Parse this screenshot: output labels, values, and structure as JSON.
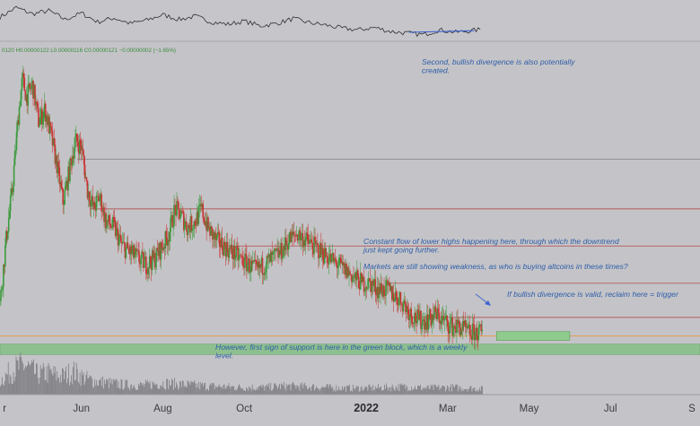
{
  "chart_data": {
    "type": "candlestick",
    "ohlc_header": "0120  H0.00000122  L0.00000116  C0.00000121  −0.00000002 (−1.65%)",
    "x_ticks": [
      {
        "label": "r",
        "pos": 0.07
      },
      {
        "label": "Jun",
        "pos": 2.0
      },
      {
        "label": "Aug",
        "pos": 4.0
      },
      {
        "label": "Oct",
        "pos": 6.0
      },
      {
        "label": "2022",
        "pos": 9.0,
        "bold": true
      },
      {
        "label": "Mar",
        "pos": 11.0
      },
      {
        "label": "May",
        "pos": 13.0
      },
      {
        "label": "Jul",
        "pos": 15.0
      },
      {
        "label": "S",
        "pos": 17.0
      }
    ],
    "x_axis_pos_range": [
      0,
      17.2
    ],
    "annotations": [
      {
        "id": "note-divergence",
        "text_lines": [
          "Second, bullish divergence is also potentially",
          "created."
        ]
      },
      {
        "id": "note-lower-highs",
        "text_lines": [
          "Constant flow of lower highs happening here, through which the downtrend",
          "just kept going further."
        ]
      },
      {
        "id": "note-weakness",
        "text_lines": [
          "Markets are still showing weakness, as who is buying altcoins in these times?"
        ]
      },
      {
        "id": "note-reclaim",
        "text_lines": [
          "If bullish divergence is valid, reclaim here = trigger"
        ]
      },
      {
        "id": "note-support",
        "text_lines": [
          "However, first sign of support is here in the green block, which is a weekly",
          "level."
        ]
      }
    ],
    "price_path": [
      [
        0.0,
        9e-07
      ],
      [
        0.05,
        1.2e-06
      ],
      [
        0.15,
        1.9e-06
      ],
      [
        0.3,
        2.7e-06
      ],
      [
        0.45,
        3.9e-06
      ],
      [
        0.55,
        4.5e-06
      ],
      [
        0.65,
        4.2e-06
      ],
      [
        0.8,
        4.4e-06
      ],
      [
        0.95,
        3.8e-06
      ],
      [
        1.1,
        4e-06
      ],
      [
        1.25,
        3.6e-06
      ],
      [
        1.4,
        3.1e-06
      ],
      [
        1.55,
        2.5e-06
      ],
      [
        1.7,
        3e-06
      ],
      [
        1.85,
        3.5e-06
      ],
      [
        2.0,
        3.4e-06
      ],
      [
        2.15,
        2.7e-06
      ],
      [
        2.3,
        2.4e-06
      ],
      [
        2.45,
        2.6e-06
      ],
      [
        2.6,
        2.2e-06
      ],
      [
        2.8,
        2.1e-06
      ],
      [
        3.0,
        1.8e-06
      ],
      [
        3.2,
        1.7e-06
      ],
      [
        3.4,
        1.6e-06
      ],
      [
        3.6,
        1.5e-06
      ],
      [
        3.8,
        1.6e-06
      ],
      [
        4.0,
        1.8e-06
      ],
      [
        4.15,
        2e-06
      ],
      [
        4.3,
        2.4e-06
      ],
      [
        4.45,
        2.3e-06
      ],
      [
        4.6,
        2.1e-06
      ],
      [
        4.8,
        2.2e-06
      ],
      [
        4.95,
        2.4e-06
      ],
      [
        5.1,
        2.1e-06
      ],
      [
        5.3,
        1.9e-06
      ],
      [
        5.5,
        1.8e-06
      ],
      [
        5.7,
        1.7e-06
      ],
      [
        5.9,
        1.6e-06
      ],
      [
        6.1,
        1.5e-06
      ],
      [
        6.3,
        1.4e-06
      ],
      [
        6.5,
        1.5e-06
      ],
      [
        6.7,
        1.6e-06
      ],
      [
        6.9,
        1.7e-06
      ],
      [
        7.1,
        1.9e-06
      ],
      [
        7.3,
        2e-06
      ],
      [
        7.5,
        1.9e-06
      ],
      [
        7.7,
        1.8e-06
      ],
      [
        7.9,
        1.7e-06
      ],
      [
        8.1,
        1.6e-06
      ],
      [
        8.3,
        1.5e-06
      ],
      [
        8.5,
        1.4e-06
      ],
      [
        8.7,
        1.3e-06
      ],
      [
        8.9,
        1.2e-06
      ],
      [
        9.1,
        1.2e-06
      ],
      [
        9.3,
        1.1e-06
      ],
      [
        9.5,
        1.1e-06
      ],
      [
        9.7,
        1e-06
      ],
      [
        9.9,
        9e-07
      ],
      [
        10.1,
        7e-07
      ],
      [
        10.3,
        6e-07
      ],
      [
        10.5,
        6e-07
      ],
      [
        10.7,
        7e-07
      ],
      [
        10.9,
        6e-07
      ],
      [
        11.1,
        5e-07
      ],
      [
        11.3,
        5e-07
      ],
      [
        11.5,
        4e-07
      ],
      [
        11.7,
        4e-07
      ],
      [
        11.85,
        4e-07
      ]
    ],
    "y_range": [
      2e-07,
      4.9e-06
    ],
    "indicator_path": [
      [
        0.0,
        58
      ],
      [
        0.4,
        70
      ],
      [
        0.8,
        62
      ],
      [
        1.2,
        66
      ],
      [
        1.6,
        55
      ],
      [
        2.0,
        63
      ],
      [
        2.4,
        52
      ],
      [
        2.8,
        57
      ],
      [
        3.2,
        50
      ],
      [
        3.6,
        54
      ],
      [
        4.0,
        61
      ],
      [
        4.4,
        55
      ],
      [
        4.8,
        59
      ],
      [
        5.2,
        52
      ],
      [
        5.6,
        49
      ],
      [
        6.0,
        53
      ],
      [
        6.4,
        47
      ],
      [
        6.8,
        50
      ],
      [
        7.2,
        56
      ],
      [
        7.6,
        51
      ],
      [
        8.0,
        48
      ],
      [
        8.4,
        44
      ],
      [
        8.8,
        42
      ],
      [
        9.2,
        45
      ],
      [
        9.6,
        40
      ],
      [
        10.0,
        38
      ],
      [
        10.4,
        36
      ],
      [
        10.8,
        42
      ],
      [
        11.2,
        39
      ],
      [
        11.6,
        41
      ],
      [
        11.85,
        43
      ]
    ],
    "indicator_range": [
      30,
      75
    ],
    "volume_path": [
      [
        0.0,
        20
      ],
      [
        0.3,
        34
      ],
      [
        0.6,
        41
      ],
      [
        0.9,
        28
      ],
      [
        1.2,
        30
      ],
      [
        1.5,
        25
      ],
      [
        1.8,
        32
      ],
      [
        2.1,
        22
      ],
      [
        2.4,
        18
      ],
      [
        2.7,
        16
      ],
      [
        3.0,
        14
      ],
      [
        3.5,
        13
      ],
      [
        4.0,
        16
      ],
      [
        4.5,
        14
      ],
      [
        5.0,
        12
      ],
      [
        5.5,
        11
      ],
      [
        6.0,
        10
      ],
      [
        6.5,
        10
      ],
      [
        7.0,
        12
      ],
      [
        7.5,
        11
      ],
      [
        8.0,
        10
      ],
      [
        8.5,
        9
      ],
      [
        9.0,
        9
      ],
      [
        9.5,
        10
      ],
      [
        10.0,
        11
      ],
      [
        10.5,
        9
      ],
      [
        11.0,
        10
      ],
      [
        11.5,
        9
      ],
      [
        11.85,
        8
      ]
    ],
    "volume_range": [
      0,
      45
    ],
    "horizontal_levels": [
      {
        "name": "level-grey-high",
        "value": 3.2e-06,
        "color": "#8c8c90",
        "from_pos": 1.9
      },
      {
        "name": "level-red-1",
        "value": 2.4e-06,
        "color": "#b65a5a",
        "from_pos": 2.2
      },
      {
        "name": "level-red-2",
        "value": 1.8e-06,
        "color": "#b65a5a",
        "from_pos": 5.4
      },
      {
        "name": "level-red-3",
        "value": 1.2e-06,
        "color": "#b65a5a",
        "from_pos": 9.5
      },
      {
        "name": "level-red-4",
        "value": 6.5e-07,
        "color": "#b65a5a",
        "from_pos": 10.0
      },
      {
        "name": "level-orange",
        "value": 3.5e-07,
        "color": "#e39a4d",
        "from_pos": 0.0
      }
    ],
    "support_zone": {
      "from_value": 5e-08,
      "to_value": 2.2e-07,
      "color": "#8dbf8f"
    },
    "reclaim_box": {
      "from_pos": 12.2,
      "to_pos": 14.0,
      "from_value": 2.8e-07,
      "to_value": 4.2e-07,
      "color": "#8fcb8c"
    },
    "divergence_line": {
      "from_pos": 10.05,
      "to_pos": 11.65,
      "from_value": 39,
      "to_value": 41,
      "color": "#3d62d0"
    },
    "colors": {
      "bull": "#3d9a3d",
      "bear": "#c93434",
      "wick": "#6a6a70"
    }
  }
}
